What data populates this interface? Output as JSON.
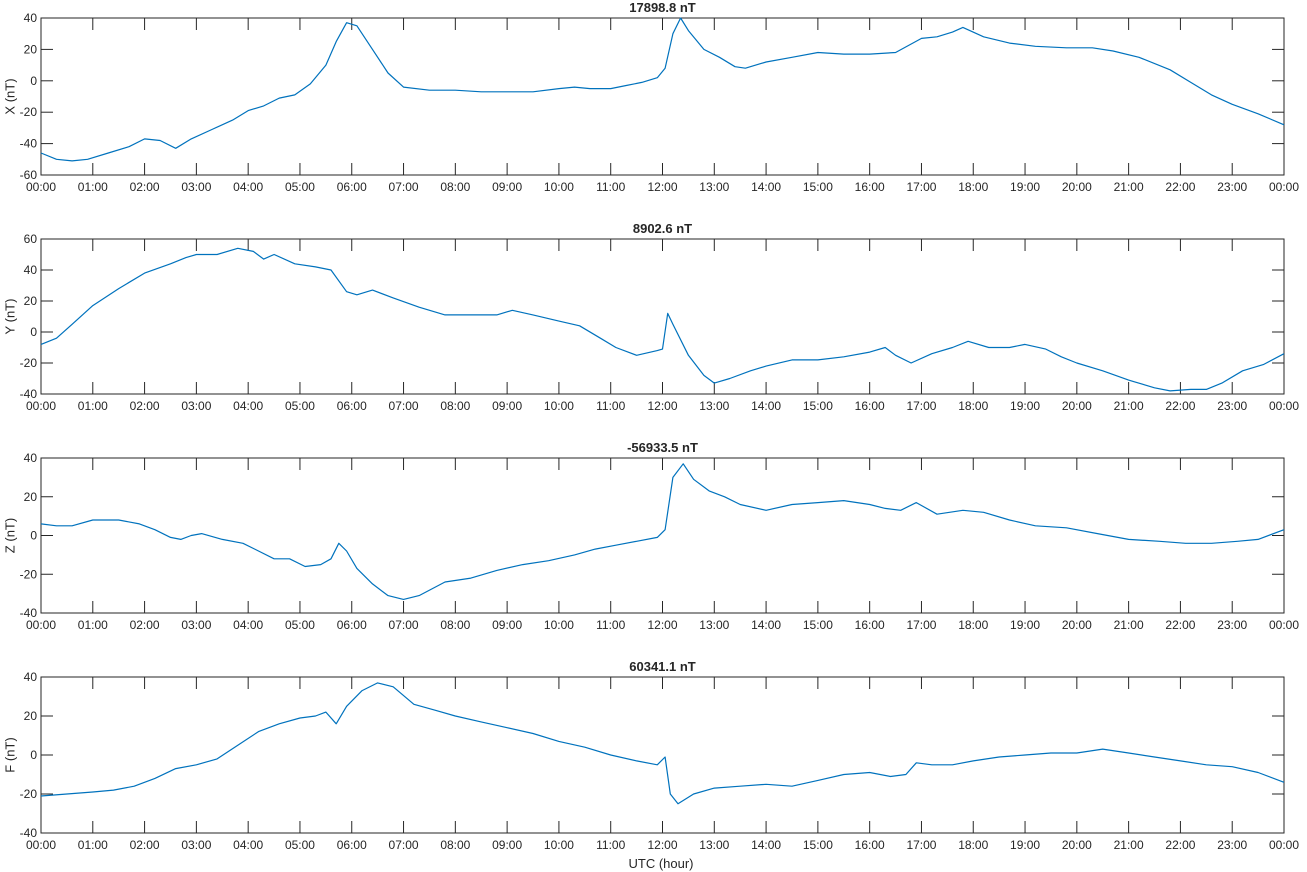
{
  "figure": {
    "xlabel": "UTC (hour)"
  },
  "series_color": "#0072BD",
  "chart_data": [
    {
      "type": "line",
      "title": "17898.8 nT",
      "ylabel": "X (nT)",
      "xlim": [
        0,
        24
      ],
      "ylim": [
        -60,
        40
      ],
      "yticks": [
        -60,
        -40,
        -20,
        0,
        20,
        40
      ],
      "xtick_labels": [
        "00:00",
        "01:00",
        "02:00",
        "03:00",
        "04:00",
        "05:00",
        "06:00",
        "07:00",
        "08:00",
        "09:00",
        "10:00",
        "11:00",
        "12:00",
        "13:00",
        "14:00",
        "15:00",
        "16:00",
        "17:00",
        "18:00",
        "19:00",
        "20:00",
        "21:00",
        "22:00",
        "23:00",
        "00:00"
      ],
      "x": [
        0,
        0.3,
        0.6,
        0.9,
        1.3,
        1.7,
        2.0,
        2.3,
        2.6,
        2.9,
        3.3,
        3.7,
        4.0,
        4.3,
        4.6,
        4.9,
        5.2,
        5.5,
        5.7,
        5.9,
        6.1,
        6.4,
        6.7,
        7.0,
        7.5,
        8.0,
        8.5,
        9.0,
        9.5,
        10.0,
        10.3,
        10.6,
        11.0,
        11.3,
        11.6,
        11.9,
        12.05,
        12.2,
        12.35,
        12.5,
        12.8,
        13.1,
        13.4,
        13.6,
        14.0,
        14.5,
        15.0,
        15.5,
        16.0,
        16.5,
        17.0,
        17.3,
        17.6,
        17.8,
        18.2,
        18.7,
        19.2,
        19.8,
        20.3,
        20.7,
        21.2,
        21.8,
        22.2,
        22.6,
        23.0,
        23.5,
        24.0
      ],
      "y": [
        -46,
        -50,
        -51,
        -50,
        -46,
        -42,
        -37,
        -38,
        -43,
        -37,
        -31,
        -25,
        -19,
        -16,
        -11,
        -9,
        -2,
        10,
        25,
        37,
        35,
        20,
        5,
        -4,
        -6,
        -6,
        -7,
        -7,
        -7,
        -5,
        -4,
        -5,
        -5,
        -3,
        -1,
        2,
        8,
        30,
        40,
        32,
        20,
        15,
        9,
        8,
        12,
        15,
        18,
        17,
        17,
        18,
        27,
        28,
        31,
        34,
        28,
        24,
        22,
        21,
        21,
        19,
        15,
        7,
        -1,
        -9,
        -15,
        -21,
        -28
      ]
    },
    {
      "type": "line",
      "title": "8902.6 nT",
      "ylabel": "Y (nT)",
      "xlim": [
        0,
        24
      ],
      "ylim": [
        -40,
        60
      ],
      "yticks": [
        -40,
        -20,
        0,
        20,
        40,
        60
      ],
      "xtick_labels": [
        "00:00",
        "01:00",
        "02:00",
        "03:00",
        "04:00",
        "05:00",
        "06:00",
        "07:00",
        "08:00",
        "09:00",
        "10:00",
        "11:00",
        "12:00",
        "13:00",
        "14:00",
        "15:00",
        "16:00",
        "17:00",
        "18:00",
        "19:00",
        "20:00",
        "21:00",
        "22:00",
        "23:00",
        "00:00"
      ],
      "x": [
        0,
        0.3,
        0.6,
        1.0,
        1.5,
        2.0,
        2.5,
        2.8,
        3.0,
        3.4,
        3.8,
        4.1,
        4.3,
        4.5,
        4.9,
        5.3,
        5.6,
        5.9,
        6.1,
        6.4,
        6.8,
        7.3,
        7.8,
        8.3,
        8.8,
        9.1,
        9.5,
        10.0,
        10.4,
        10.8,
        11.1,
        11.5,
        11.9,
        12.0,
        12.1,
        12.2,
        12.5,
        12.8,
        13.0,
        13.3,
        13.7,
        14.0,
        14.5,
        15.0,
        15.5,
        16.0,
        16.3,
        16.5,
        16.8,
        17.2,
        17.6,
        17.9,
        18.3,
        18.7,
        19.0,
        19.4,
        19.7,
        20.0,
        20.5,
        21.0,
        21.5,
        21.8,
        22.2,
        22.5,
        22.8,
        23.2,
        23.6,
        24.0
      ],
      "y": [
        -8,
        -4,
        5,
        17,
        28,
        38,
        44,
        48,
        50,
        50,
        54,
        52,
        47,
        50,
        44,
        42,
        40,
        26,
        24,
        27,
        22,
        16,
        11,
        11,
        11,
        14,
        11,
        7,
        4,
        -4,
        -10,
        -15,
        -12,
        -11,
        12,
        5,
        -15,
        -28,
        -33,
        -30,
        -25,
        -22,
        -18,
        -18,
        -16,
        -13,
        -10,
        -15,
        -20,
        -14,
        -10,
        -6,
        -10,
        -10,
        -8,
        -11,
        -16,
        -20,
        -25,
        -31,
        -36,
        -38,
        -37,
        -37,
        -33,
        -25,
        -21,
        -14
      ]
    },
    {
      "type": "line",
      "title": "-56933.5 nT",
      "ylabel": "Z (nT)",
      "xlim": [
        0,
        24
      ],
      "ylim": [
        -40,
        40
      ],
      "yticks": [
        -40,
        -20,
        0,
        20,
        40
      ],
      "xtick_labels": [
        "00:00",
        "01:00",
        "02:00",
        "03:00",
        "04:00",
        "05:00",
        "06:00",
        "07:00",
        "08:00",
        "09:00",
        "10:00",
        "11:00",
        "12:00",
        "13:00",
        "14:00",
        "15:00",
        "16:00",
        "17:00",
        "18:00",
        "19:00",
        "20:00",
        "21:00",
        "22:00",
        "23:00",
        "00:00"
      ],
      "x": [
        0,
        0.3,
        0.6,
        1.0,
        1.5,
        1.9,
        2.2,
        2.5,
        2.7,
        2.9,
        3.1,
        3.5,
        3.9,
        4.2,
        4.5,
        4.8,
        5.1,
        5.4,
        5.6,
        5.75,
        5.9,
        6.1,
        6.4,
        6.7,
        7.0,
        7.3,
        7.8,
        8.3,
        8.8,
        9.3,
        9.8,
        10.3,
        10.7,
        11.1,
        11.5,
        11.9,
        12.05,
        12.2,
        12.4,
        12.6,
        12.9,
        13.2,
        13.5,
        14.0,
        14.5,
        15.0,
        15.5,
        16.0,
        16.3,
        16.6,
        16.9,
        17.3,
        17.8,
        18.2,
        18.7,
        19.2,
        19.8,
        20.4,
        21.0,
        21.6,
        22.1,
        22.6,
        23.1,
        23.5,
        24.0
      ],
      "y": [
        6,
        5,
        5,
        8,
        8,
        6,
        3,
        -1,
        -2,
        0,
        1,
        -2,
        -4,
        -8,
        -12,
        -12,
        -16,
        -15,
        -12,
        -4,
        -8,
        -17,
        -25,
        -31,
        -33,
        -31,
        -24,
        -22,
        -18,
        -15,
        -13,
        -10,
        -7,
        -5,
        -3,
        -1,
        3,
        30,
        37,
        29,
        23,
        20,
        16,
        13,
        16,
        17,
        18,
        16,
        14,
        13,
        17,
        11,
        13,
        12,
        8,
        5,
        4,
        1,
        -2,
        -3,
        -4,
        -4,
        -3,
        -2,
        3
      ]
    },
    {
      "type": "line",
      "title": "60341.1 nT",
      "ylabel": "F (nT)",
      "xlim": [
        0,
        24
      ],
      "ylim": [
        -40,
        40
      ],
      "yticks": [
        -40,
        -20,
        0,
        20,
        40
      ],
      "xtick_labels": [
        "00:00",
        "01:00",
        "02:00",
        "03:00",
        "04:00",
        "05:00",
        "06:00",
        "07:00",
        "08:00",
        "09:00",
        "10:00",
        "11:00",
        "12:00",
        "13:00",
        "14:00",
        "15:00",
        "16:00",
        "17:00",
        "18:00",
        "19:00",
        "20:00",
        "21:00",
        "22:00",
        "23:00",
        "00:00"
      ],
      "x": [
        0,
        0.5,
        1.0,
        1.4,
        1.8,
        2.2,
        2.6,
        3.0,
        3.4,
        3.8,
        4.2,
        4.6,
        5.0,
        5.3,
        5.5,
        5.7,
        5.9,
        6.2,
        6.5,
        6.8,
        7.2,
        7.6,
        8.0,
        8.5,
        9.0,
        9.5,
        10.0,
        10.5,
        11.0,
        11.5,
        11.9,
        12.05,
        12.15,
        12.3,
        12.6,
        13.0,
        13.5,
        14.0,
        14.5,
        15.0,
        15.5,
        16.0,
        16.4,
        16.7,
        16.9,
        17.2,
        17.6,
        18.0,
        18.5,
        19.0,
        19.5,
        20.0,
        20.5,
        21.0,
        21.5,
        22.0,
        22.5,
        23.0,
        23.5,
        24.0
      ],
      "y": [
        -21,
        -20,
        -19,
        -18,
        -16,
        -12,
        -7,
        -5,
        -2,
        5,
        12,
        16,
        19,
        20,
        22,
        16,
        25,
        33,
        37,
        35,
        26,
        23,
        20,
        17,
        14,
        11,
        7,
        4,
        0,
        -3,
        -5,
        -1,
        -20,
        -25,
        -20,
        -17,
        -16,
        -15,
        -16,
        -13,
        -10,
        -9,
        -11,
        -10,
        -4,
        -5,
        -5,
        -3,
        -1,
        0,
        1,
        1,
        3,
        1,
        -1,
        -3,
        -5,
        -6,
        -9,
        -14
      ]
    }
  ]
}
